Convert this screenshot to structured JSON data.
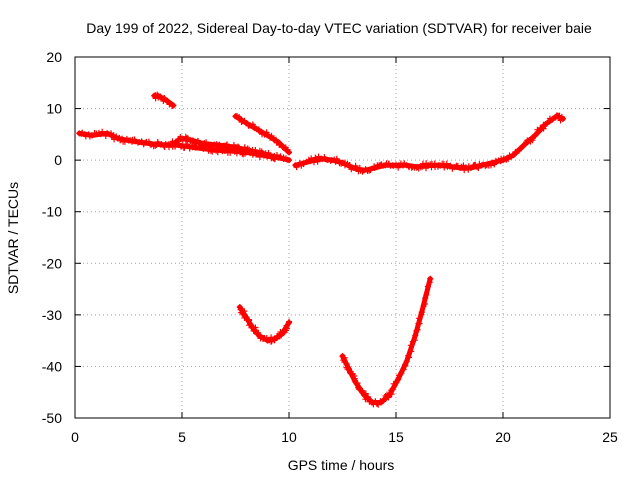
{
  "chart_data": {
    "type": "scatter",
    "title": "Day 199 of 2022, Sidereal Day-to-day VTEC variation (SDTVAR) for receiver baie",
    "xlabel": "GPS time / hours",
    "ylabel": "SDTVAR / TECUs",
    "xlim": [
      0,
      25
    ],
    "ylim": [
      -50,
      20
    ],
    "x_ticks": [
      0,
      5,
      10,
      15,
      20,
      25
    ],
    "y_ticks": [
      -50,
      -40,
      -30,
      -20,
      -10,
      0,
      10,
      20
    ],
    "grid": true,
    "color": "#ff0000",
    "series": [
      {
        "name": "track-main",
        "points": [
          [
            0.2,
            5.2
          ],
          [
            0.8,
            4.8
          ],
          [
            1.5,
            5.2
          ],
          [
            2.0,
            4.2
          ],
          [
            2.5,
            3.8
          ],
          [
            3.0,
            3.5
          ],
          [
            3.5,
            3.2
          ],
          [
            4.0,
            3.0
          ],
          [
            4.5,
            3.0
          ],
          [
            5.0,
            2.8
          ],
          [
            5.5,
            2.5
          ],
          [
            6.0,
            2.2
          ],
          [
            6.5,
            2.0
          ],
          [
            7.0,
            1.8
          ],
          [
            7.5,
            1.8
          ],
          [
            8.0,
            1.5
          ],
          [
            8.5,
            1.2
          ],
          [
            9.0,
            0.8
          ],
          [
            9.5,
            0.5
          ],
          [
            10.0,
            0.0
          ]
        ]
      },
      {
        "name": "track-branch",
        "points": [
          [
            4.5,
            3.0
          ],
          [
            5.0,
            4.2
          ],
          [
            5.5,
            3.8
          ],
          [
            6.0,
            3.2
          ],
          [
            6.5,
            3.0
          ],
          [
            7.0,
            2.8
          ],
          [
            7.5,
            2.5
          ],
          [
            8.0,
            2.0
          ],
          [
            8.5,
            1.5
          ],
          [
            9.0,
            1.0
          ],
          [
            9.5,
            0.5
          ]
        ]
      },
      {
        "name": "track-short",
        "points": [
          [
            3.7,
            12.5
          ],
          [
            4.0,
            12.2
          ],
          [
            4.3,
            11.5
          ],
          [
            4.6,
            10.6
          ]
        ]
      },
      {
        "name": "track-descent",
        "points": [
          [
            7.5,
            8.5
          ],
          [
            8.0,
            7.2
          ],
          [
            8.5,
            6.0
          ],
          [
            9.0,
            4.8
          ],
          [
            9.5,
            3.5
          ],
          [
            10.0,
            1.5
          ]
        ]
      },
      {
        "name": "track-long",
        "points": [
          [
            10.3,
            -1.0
          ],
          [
            11.0,
            -0.2
          ],
          [
            11.5,
            0.3
          ],
          [
            12.0,
            0.0
          ],
          [
            12.5,
            -0.5
          ],
          [
            13.0,
            -1.5
          ],
          [
            13.5,
            -2.0
          ],
          [
            14.0,
            -1.5
          ],
          [
            14.5,
            -1.0
          ],
          [
            15.0,
            -1.0
          ],
          [
            15.5,
            -1.0
          ],
          [
            16.0,
            -1.3
          ],
          [
            16.5,
            -1.0
          ],
          [
            17.0,
            -1.0
          ],
          [
            17.5,
            -1.2
          ],
          [
            18.0,
            -1.5
          ],
          [
            18.5,
            -1.5
          ],
          [
            19.0,
            -1.0
          ],
          [
            19.5,
            -0.5
          ],
          [
            20.0,
            0.0
          ],
          [
            20.5,
            1.0
          ],
          [
            21.0,
            3.0
          ],
          [
            21.5,
            4.8
          ],
          [
            22.0,
            7.0
          ],
          [
            22.5,
            8.5
          ],
          [
            22.8,
            8.0
          ]
        ]
      },
      {
        "name": "track-dip-a",
        "points": [
          [
            7.7,
            -28.5
          ],
          [
            8.0,
            -30.5
          ],
          [
            8.3,
            -32.5
          ],
          [
            8.6,
            -34.0
          ],
          [
            9.0,
            -35.0
          ],
          [
            9.4,
            -34.5
          ],
          [
            9.7,
            -33.5
          ],
          [
            10.0,
            -31.5
          ]
        ]
      },
      {
        "name": "track-dip-b",
        "points": [
          [
            12.5,
            -38.0
          ],
          [
            12.8,
            -40.5
          ],
          [
            13.1,
            -43.0
          ],
          [
            13.5,
            -45.5
          ],
          [
            13.9,
            -47.0
          ],
          [
            14.3,
            -47.0
          ],
          [
            14.7,
            -45.5
          ],
          [
            15.1,
            -42.5
          ],
          [
            15.5,
            -39.0
          ],
          [
            15.9,
            -34.0
          ],
          [
            16.2,
            -29.5
          ],
          [
            16.6,
            -23.0
          ]
        ]
      }
    ]
  }
}
